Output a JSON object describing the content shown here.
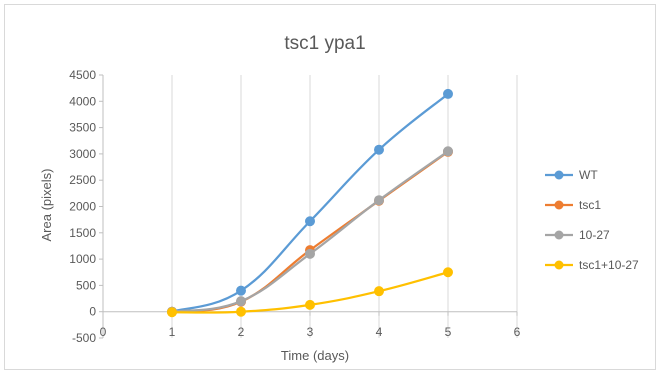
{
  "chart_data": {
    "type": "line",
    "title": "tsc1 ypa1",
    "xlabel": "Time (days)",
    "ylabel": "Area (pixels)",
    "xlim": [
      0,
      6
    ],
    "ylim": [
      -500,
      4500
    ],
    "x_ticks": [
      "0",
      "1",
      "2",
      "3",
      "4",
      "5",
      "6"
    ],
    "y_ticks": [
      "-500",
      "0",
      "500",
      "1000",
      "1500",
      "2000",
      "2500",
      "3000",
      "3500",
      "4000",
      "4500"
    ],
    "grid": "vertical",
    "legend_position": "right",
    "x": [
      1,
      2,
      3,
      4,
      5
    ],
    "series": [
      {
        "name": "WT",
        "color": "#5b9bd5",
        "values": [
          0,
          400,
          1720,
          3080,
          4140
        ]
      },
      {
        "name": "tsc1",
        "color": "#ed7d31",
        "values": [
          0,
          190,
          1170,
          2110,
          3040
        ]
      },
      {
        "name": "10-27",
        "color": "#a5a5a5",
        "values": [
          0,
          200,
          1100,
          2120,
          3050
        ]
      },
      {
        "name": "tsc1+10-27",
        "color": "#ffc000",
        "values": [
          -10,
          0,
          130,
          390,
          750
        ]
      }
    ]
  }
}
